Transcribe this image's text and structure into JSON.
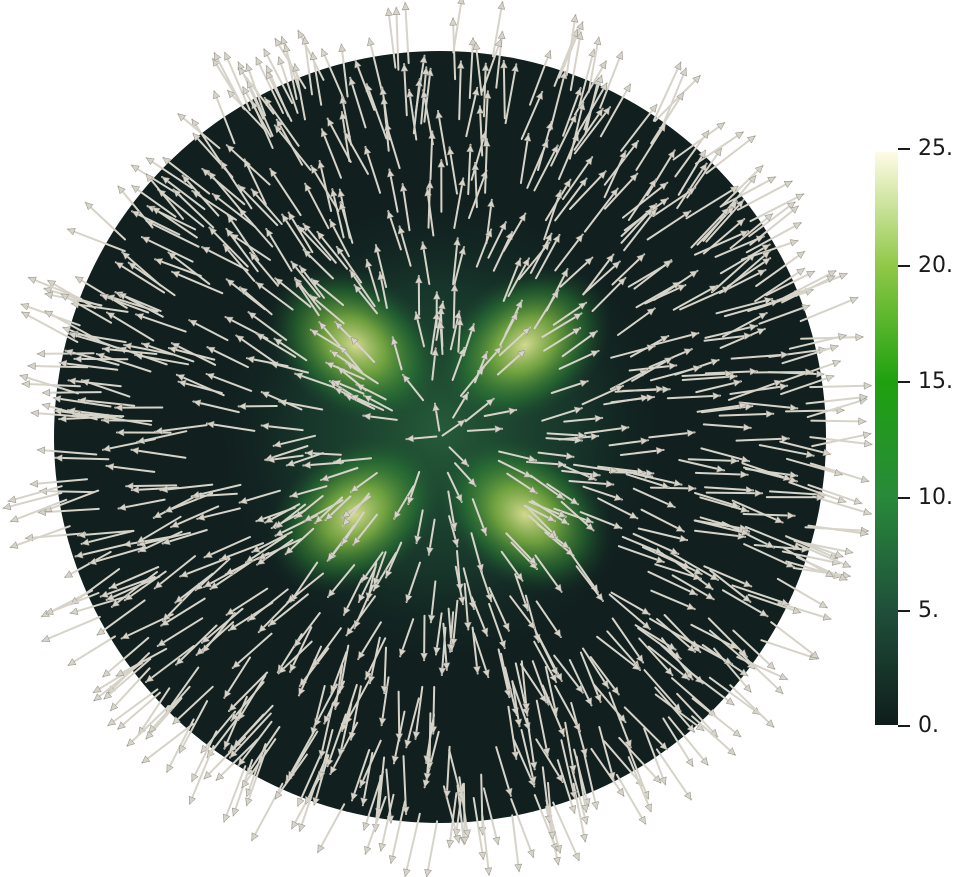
{
  "colorbar": {
    "labels": [
      "25.",
      "20.",
      "15.",
      "10.",
      "5.",
      "0."
    ],
    "min": 0,
    "max": 25,
    "stops": [
      {
        "value": 0,
        "color": "#0f1d1c"
      },
      {
        "value": 5,
        "color": "#1f4f3a"
      },
      {
        "value": 10,
        "color": "#288a3a"
      },
      {
        "value": 15,
        "color": "#1fa10f"
      },
      {
        "value": 20,
        "color": "#8fc847"
      },
      {
        "value": 25,
        "color": "#fffbe5"
      }
    ]
  },
  "glyph_color": "#d6d3c9",
  "sphere_base_color": "#11201f"
}
